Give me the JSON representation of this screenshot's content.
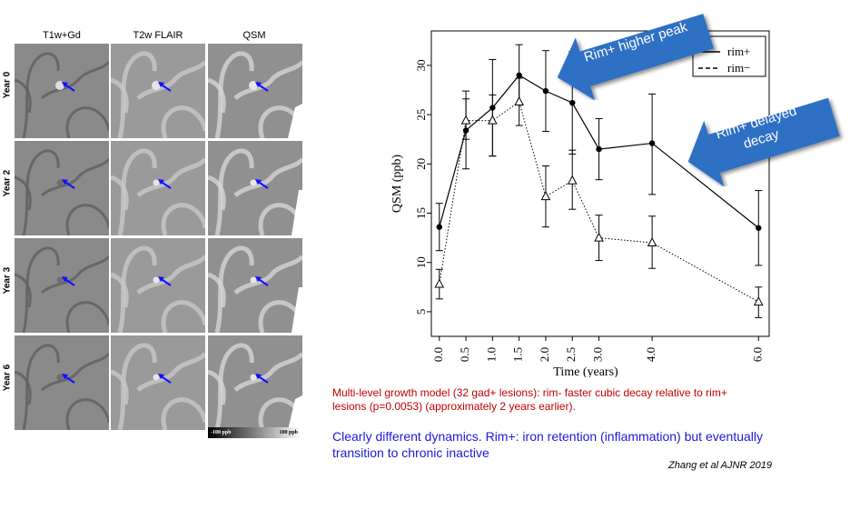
{
  "mri_panel": {
    "columns": [
      "T1w+Gd",
      "T2w FLAIR",
      "QSM"
    ],
    "rows": [
      "Year 0",
      "Year 2",
      "Year 3",
      "Year 6"
    ],
    "colorbar_min": "-100 ppb",
    "colorbar_max": "100 ppb"
  },
  "chart_data": {
    "type": "line",
    "xlabel": "Time (years)",
    "ylabel": "QSM (ppb)",
    "x": [
      0.0,
      0.5,
      1.0,
      1.5,
      2.0,
      2.5,
      3.0,
      4.0,
      6.0
    ],
    "x_tick_labels": [
      "0.0",
      "0.5",
      "1.0",
      "1.5",
      "2.0",
      "2.5",
      "3.0",
      "4.0",
      "6.0"
    ],
    "y_ticks": [
      5,
      10,
      15,
      20,
      25,
      30
    ],
    "xlim": [
      -0.15,
      6.2
    ],
    "ylim": [
      2.5,
      33.5
    ],
    "legend_position": "top-right",
    "series": [
      {
        "name": "rim+",
        "line": "solid",
        "marker": "filled-circle",
        "values": [
          13.6,
          23.4,
          25.7,
          29.0,
          27.4,
          26.2,
          21.5,
          22.1,
          13.5
        ],
        "err_low": [
          11.2,
          19.5,
          20.8,
          26.0,
          23.3,
          21.0,
          18.4,
          16.9,
          9.7
        ],
        "err_high": [
          16.0,
          27.4,
          30.6,
          32.1,
          31.5,
          31.4,
          24.6,
          27.1,
          17.3
        ]
      },
      {
        "name": "rim−",
        "line": "dotted",
        "marker": "open-triangle",
        "values": [
          7.8,
          24.4,
          24.4,
          26.3,
          16.7,
          18.3,
          12.5,
          12.0,
          6.0
        ],
        "err_low": [
          6.3,
          22.5,
          20.8,
          23.9,
          13.6,
          15.4,
          10.2,
          9.4,
          4.4
        ],
        "err_high": [
          9.3,
          26.6,
          27.0,
          28.7,
          19.8,
          21.4,
          14.8,
          14.7,
          7.5
        ]
      }
    ],
    "legend_labels": [
      "rim+",
      "rim−"
    ]
  },
  "callouts": {
    "peak": "Rim+ higher peak",
    "decay": "Rim+ delayed decay"
  },
  "notes": {
    "red": "Multi-level growth model (32 gad+ lesions): rim- faster cubic decay relative to rim+ lesions (p=0.0053) (approximately 2 years earlier).",
    "blue": "Clearly different dynamics.  Rim+: iron retention (inflammation) but eventually transition to chronic inactive",
    "citation": "Zhang et al AJNR 2019"
  },
  "colors": {
    "red_note": "#c00000",
    "blue_note": "#1a1adc",
    "callout_fill": "#2e6fc4",
    "arrow_marker": "#1010ff"
  }
}
